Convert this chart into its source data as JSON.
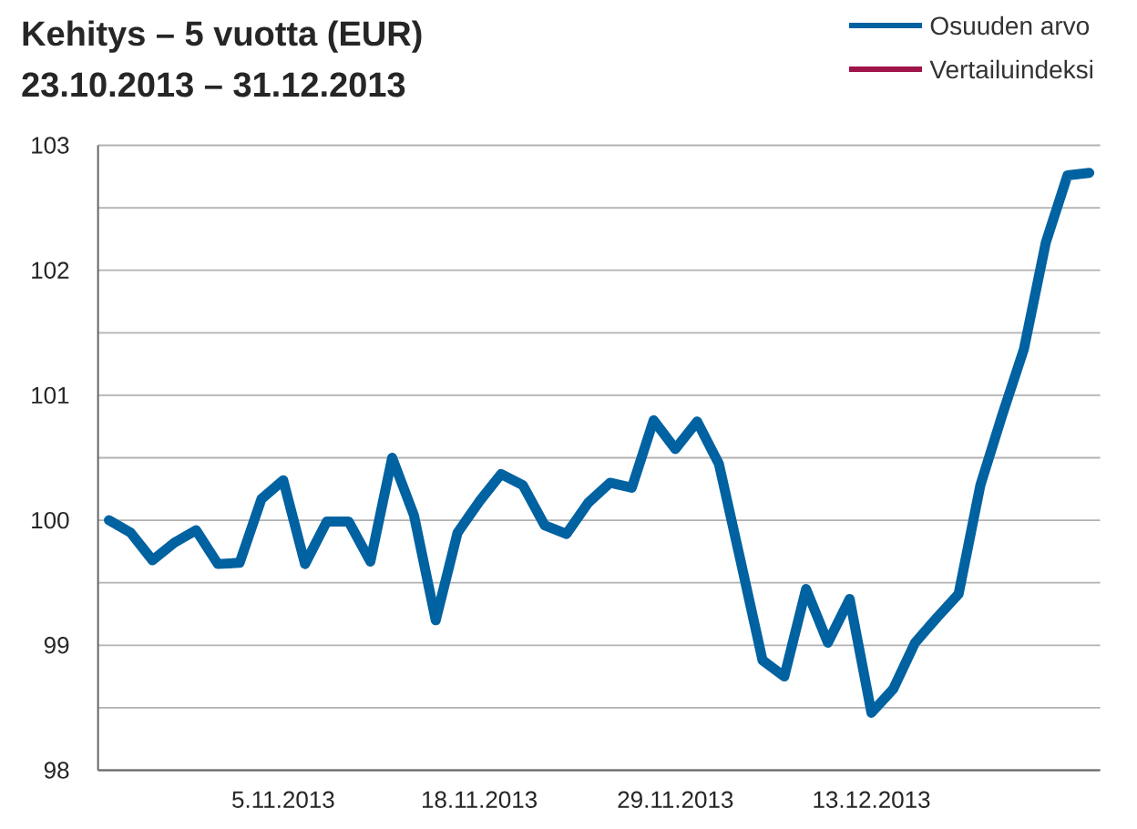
{
  "chart_data": {
    "type": "line",
    "title": "Kehitys – 5 vuotta (EUR)",
    "subtitle": "23.10.2013 – 31.12.2013",
    "categories": [
      null,
      null,
      null,
      null,
      null,
      null,
      null,
      null,
      "5.11.2013",
      null,
      null,
      null,
      null,
      null,
      null,
      null,
      null,
      "18.11.2013",
      null,
      null,
      null,
      null,
      null,
      null,
      null,
      null,
      "29.11.2013",
      null,
      null,
      null,
      null,
      null,
      null,
      null,
      null,
      "13.12.2013",
      null,
      null,
      null,
      null,
      null,
      null,
      null,
      null,
      null,
      null
    ],
    "series": [
      {
        "name": "Osuuden arvo",
        "color": "#0062a0",
        "values": [
          100.0,
          99.9,
          99.68,
          99.82,
          99.92,
          99.65,
          99.66,
          100.17,
          100.32,
          99.65,
          99.99,
          99.99,
          99.67,
          100.5,
          100.04,
          99.2,
          99.9,
          100.15,
          100.37,
          100.28,
          99.96,
          99.89,
          100.14,
          100.3,
          100.26,
          100.8,
          100.57,
          100.79,
          100.45,
          99.67,
          98.88,
          98.75,
          99.45,
          99.02,
          99.37,
          98.46,
          98.65,
          99.02,
          99.22,
          99.41,
          100.28,
          100.84,
          101.37,
          102.22,
          102.76,
          102.78
        ]
      },
      {
        "name": "Vertailuindeksi",
        "color": "#a0144a",
        "values": [
          null,
          null,
          null,
          null,
          null,
          null,
          null,
          null,
          null,
          null,
          null,
          null,
          null,
          null,
          null,
          null,
          null,
          null,
          null,
          null,
          null,
          null,
          null,
          null,
          null,
          null,
          null,
          null,
          null,
          null,
          null,
          null,
          null,
          null,
          null,
          null,
          null,
          null,
          null,
          null,
          null,
          null,
          null,
          null,
          null,
          null
        ]
      }
    ],
    "ylim": [
      98,
      103
    ],
    "yticks": [
      98,
      {
        "value": 98.5,
        "label": null
      },
      99,
      {
        "value": 99.5,
        "label": null
      },
      100,
      {
        "value": 100.5,
        "label": null
      },
      101,
      {
        "value": 101.5,
        "label": null
      },
      102,
      {
        "value": 102.5,
        "label": null
      },
      103
    ],
    "grid": "y",
    "legend": "top right",
    "marker": "none",
    "line_style": "solid"
  }
}
